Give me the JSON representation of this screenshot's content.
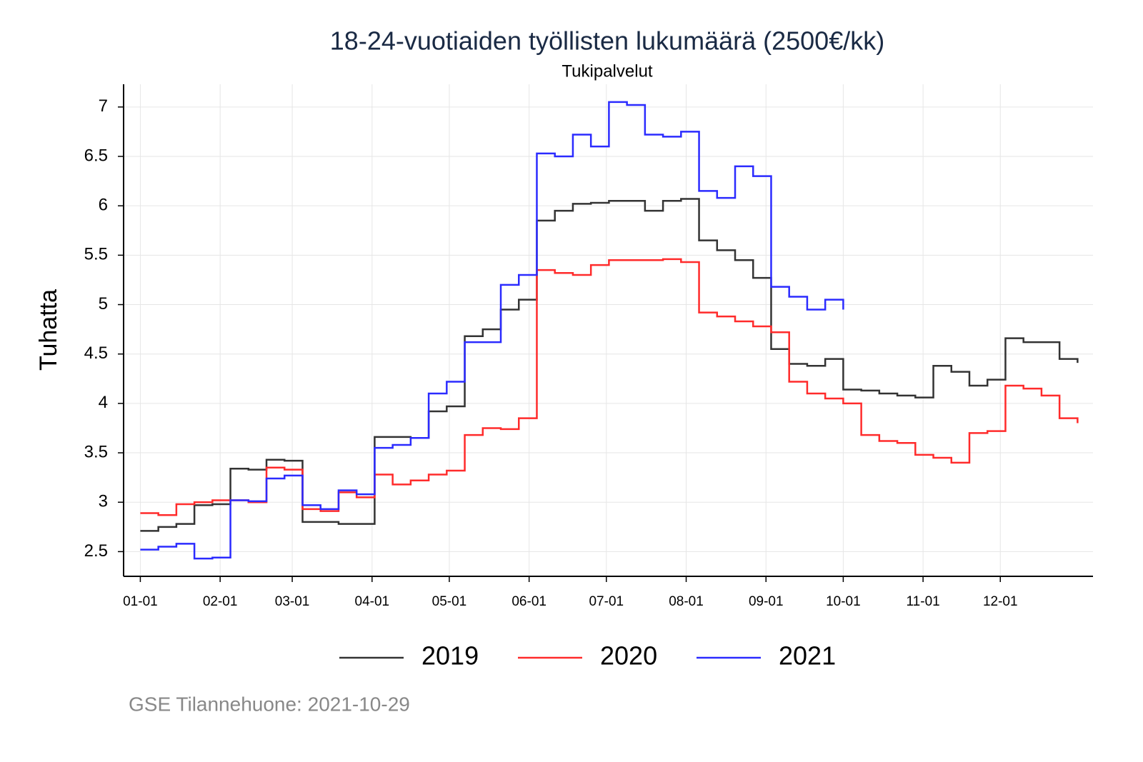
{
  "chart_data": {
    "type": "line",
    "step": true,
    "title": "18-24-vuotiaiden työllisten lukumäärä (2500€/kk)",
    "subtitle": "Tukipalvelut",
    "y_label": "Tuhatta",
    "source": "GSE Tilannehuone: 2021-10-29",
    "grid": true,
    "legend": "bottom",
    "xlim": [
      -5.5,
      371
    ],
    "ylim": [
      2.25,
      7.23
    ],
    "xticks": [
      {
        "value": 1,
        "label": "01-01"
      },
      {
        "value": 32,
        "label": "02-01"
      },
      {
        "value": 60,
        "label": "03-01"
      },
      {
        "value": 91,
        "label": "04-01"
      },
      {
        "value": 121,
        "label": "05-01"
      },
      {
        "value": 152,
        "label": "06-01"
      },
      {
        "value": 182,
        "label": "07-01"
      },
      {
        "value": 213,
        "label": "08-01"
      },
      {
        "value": 244,
        "label": "09-01"
      },
      {
        "value": 274,
        "label": "10-01"
      },
      {
        "value": 305,
        "label": "11-01"
      },
      {
        "value": 335,
        "label": "12-01"
      }
    ],
    "yticks": [
      2.5,
      3,
      3.5,
      4,
      4.5,
      5,
      5.5,
      6,
      6.5,
      7
    ],
    "x": [
      1,
      8,
      15,
      22,
      29,
      36,
      43,
      50,
      57,
      64,
      71,
      78,
      85,
      92,
      99,
      106,
      113,
      120,
      127,
      134,
      141,
      148,
      155,
      162,
      169,
      176,
      183,
      190,
      197,
      204,
      211,
      218,
      225,
      232,
      239,
      246,
      253,
      260,
      267,
      274,
      281,
      288,
      295,
      302,
      309,
      316,
      323,
      330,
      337,
      344,
      351,
      358,
      365
    ],
    "series": [
      {
        "name": "2019",
        "color": "#333333",
        "values": [
          2.71,
          2.75,
          2.78,
          2.97,
          2.98,
          3.34,
          3.33,
          3.43,
          3.42,
          2.8,
          2.8,
          2.78,
          2.78,
          3.66,
          3.66,
          3.65,
          3.92,
          3.97,
          4.68,
          4.75,
          4.95,
          5.05,
          5.85,
          5.95,
          6.02,
          6.03,
          6.05,
          6.05,
          5.95,
          6.05,
          6.07,
          5.65,
          5.55,
          5.45,
          5.27,
          4.55,
          4.4,
          4.38,
          4.45,
          4.14,
          4.13,
          4.1,
          4.08,
          4.06,
          4.38,
          4.32,
          4.18,
          4.24,
          4.66,
          4.62,
          4.62,
          4.45,
          4.41
        ]
      },
      {
        "name": "2020",
        "color": "#ff2b2b",
        "values": [
          2.89,
          2.87,
          2.98,
          3.0,
          3.02,
          3.02,
          3.0,
          3.35,
          3.33,
          2.93,
          2.91,
          3.1,
          3.05,
          3.28,
          3.18,
          3.22,
          3.28,
          3.32,
          3.68,
          3.75,
          3.74,
          3.85,
          5.35,
          5.32,
          5.3,
          5.4,
          5.45,
          5.45,
          5.45,
          5.46,
          5.43,
          4.92,
          4.88,
          4.83,
          4.78,
          4.72,
          4.22,
          4.1,
          4.05,
          4.0,
          3.68,
          3.62,
          3.6,
          3.48,
          3.45,
          3.4,
          3.7,
          3.72,
          4.18,
          4.15,
          4.08,
          3.85,
          3.8
        ]
      },
      {
        "name": "2021",
        "color": "#2b2bff",
        "values": [
          2.52,
          2.55,
          2.58,
          2.43,
          2.44,
          3.02,
          3.01,
          3.24,
          3.27,
          2.97,
          2.93,
          3.12,
          3.08,
          3.55,
          3.58,
          3.65,
          4.1,
          4.22,
          4.62,
          4.62,
          5.2,
          5.3,
          6.53,
          6.5,
          6.72,
          6.6,
          7.05,
          7.02,
          6.72,
          6.7,
          6.75,
          6.15,
          6.08,
          6.4,
          6.3,
          5.18,
          5.08,
          4.95,
          5.05,
          4.95,
          null,
          null,
          null,
          null,
          null,
          null,
          null,
          null,
          null,
          null,
          null,
          null,
          null
        ]
      }
    ]
  }
}
